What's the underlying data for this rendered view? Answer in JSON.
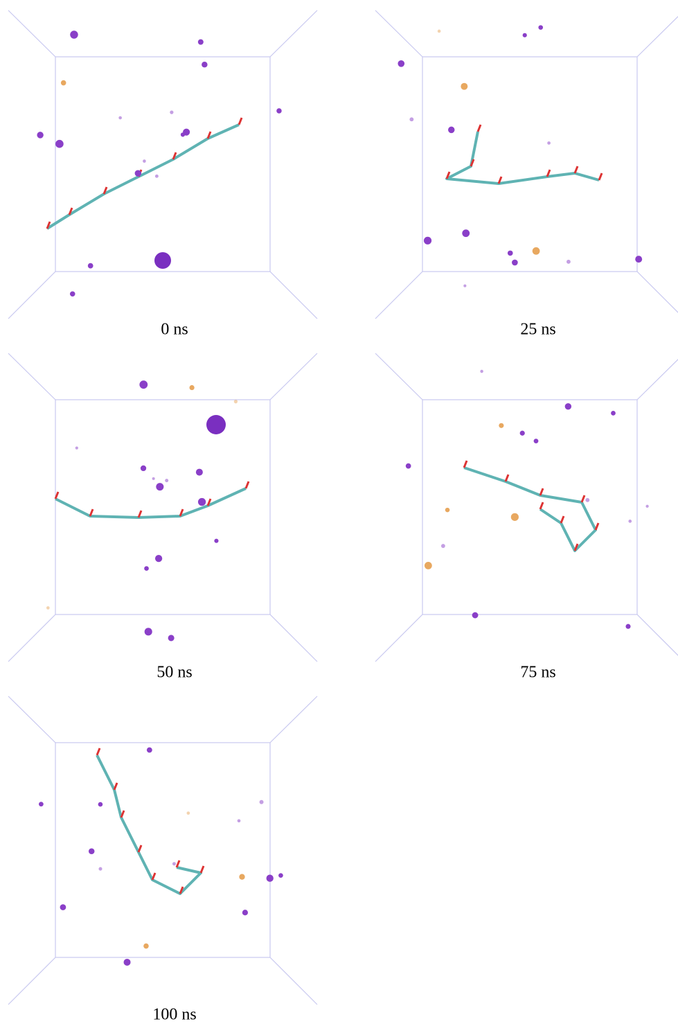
{
  "panels": [
    {
      "label": "0 ns"
    },
    {
      "label": "25 ns"
    },
    {
      "label": "50 ns"
    },
    {
      "label": "75 ns"
    },
    {
      "label": "100 ns"
    }
  ]
}
